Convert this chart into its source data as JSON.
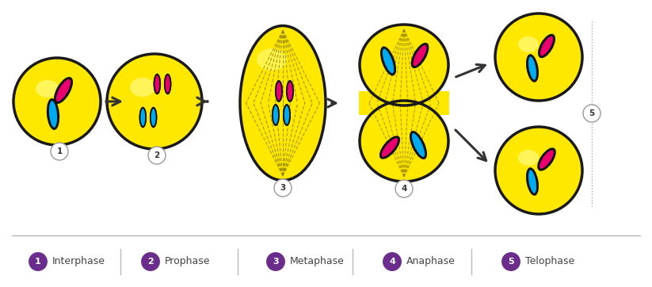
{
  "bg_color": "#ffffff",
  "cell_yellow": "#FFE800",
  "cell_outline": "#1a1a1a",
  "chr_pink": "#E8006E",
  "chr_blue": "#00AAEE",
  "chr_outline": "#111111",
  "spindle_color": "#998800",
  "arrow_color": "#333333",
  "label_bg": "#6B2D8B",
  "separator_color": "#aaaaaa",
  "legend_items": [
    {
      "num": "1",
      "label": "Interphase"
    },
    {
      "num": "2",
      "label": "Prophase"
    },
    {
      "num": "3",
      "label": "Metaphase"
    },
    {
      "num": "4",
      "label": "Anaphase"
    },
    {
      "num": "5",
      "label": "Telophase"
    }
  ]
}
